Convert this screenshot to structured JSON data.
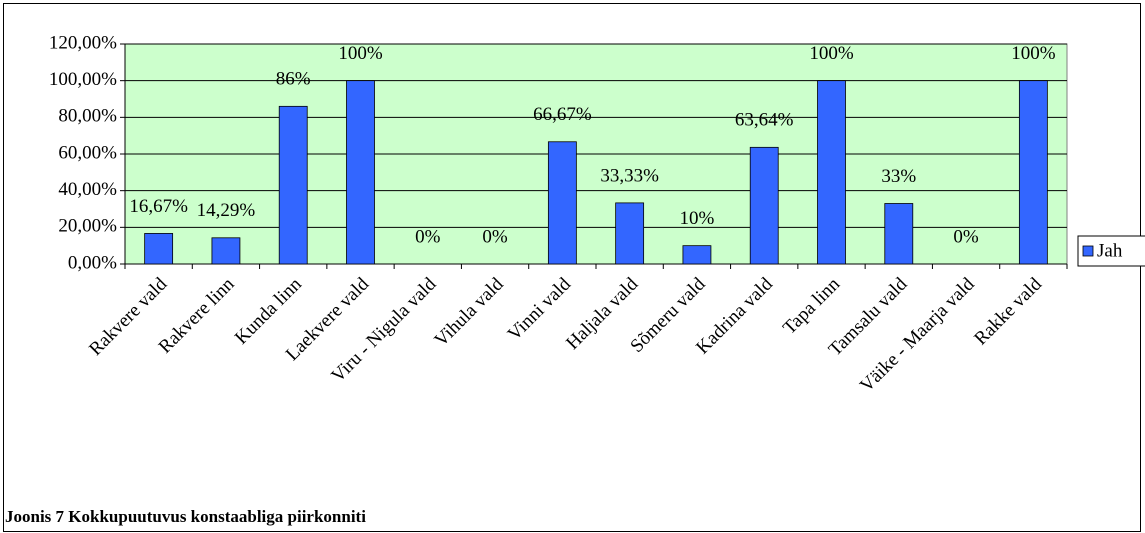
{
  "chart_data": {
    "type": "bar",
    "categories": [
      "Rakvere vald",
      "Rakvere linn",
      "Kunda linn",
      "Laekvere vald",
      "Viru - Nigula vald",
      "Vihula vald",
      "Vinni vald",
      "Haljala vald",
      "Sõmeru vald",
      "Kadrina vald",
      "Tapa linn",
      "Tamsalu vald",
      "Väike - Maarja vald",
      "Rakke vald"
    ],
    "series": [
      {
        "name": "Jah",
        "color": "#3366ff",
        "values": [
          16.67,
          14.29,
          86,
          100,
          0,
          0,
          66.67,
          33.33,
          10,
          63.64,
          100,
          33,
          0,
          100
        ],
        "value_labels": [
          "16,67%",
          "14,29%",
          "86%",
          "100%",
          "0%",
          "0%",
          "66,67%",
          "33,33%",
          "10%",
          "63,64%",
          "100%",
          "33%",
          "0%",
          "100%"
        ]
      }
    ],
    "ylim": [
      0,
      120
    ],
    "yticks": [
      {
        "value": 0,
        "label": "0,00%"
      },
      {
        "value": 20,
        "label": "20,00%"
      },
      {
        "value": 40,
        "label": "40,00%"
      },
      {
        "value": 60,
        "label": "60,00%"
      },
      {
        "value": 80,
        "label": "80,00%"
      },
      {
        "value": 100,
        "label": "100,00%"
      },
      {
        "value": 120,
        "label": "120,00%"
      }
    ],
    "grid": true,
    "legend": "right",
    "background": "#ccffcc"
  },
  "caption": "Joonis 7 Kokkupuutuvus konstaabliga piirkonniti"
}
